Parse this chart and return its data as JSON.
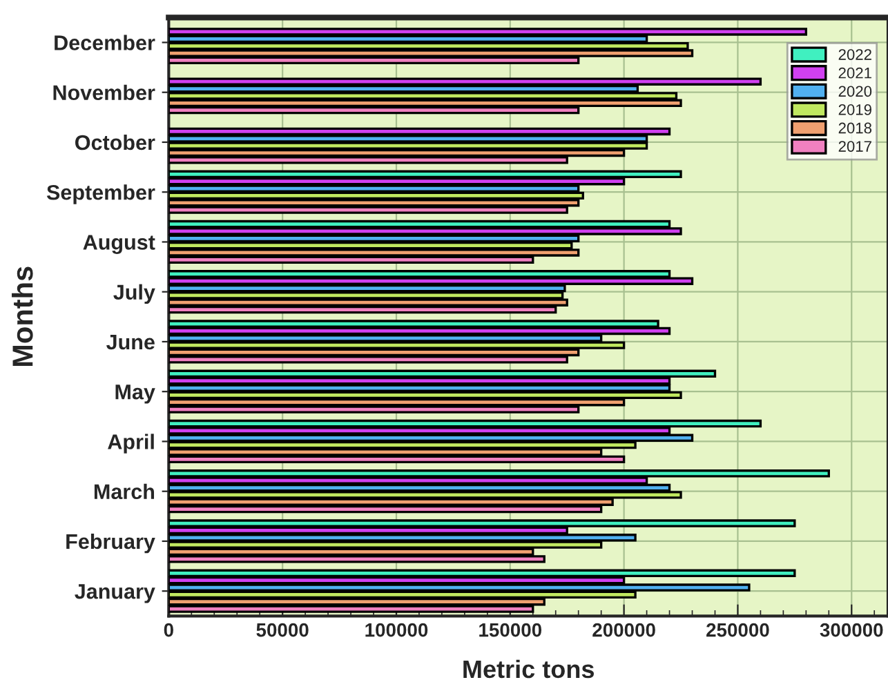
{
  "chart_data": {
    "type": "bar",
    "orientation": "horizontal",
    "xlabel": "Metric tons",
    "ylabel": "Months",
    "categories": [
      "December",
      "November",
      "October",
      "September",
      "August",
      "July",
      "June",
      "May",
      "April",
      "March",
      "February",
      "January"
    ],
    "series": [
      {
        "name": "2022",
        "color": "#40f0c0",
        "values": [
          null,
          null,
          null,
          225000,
          220000,
          220000,
          215000,
          240000,
          260000,
          290000,
          275000,
          275000
        ]
      },
      {
        "name": "2021",
        "color": "#d040f0",
        "values": [
          280000,
          260000,
          220000,
          200000,
          225000,
          230000,
          220000,
          220000,
          220000,
          210000,
          175000,
          200000
        ]
      },
      {
        "name": "2020",
        "color": "#50b0f0",
        "values": [
          210000,
          206000,
          210000,
          180000,
          180000,
          174000,
          190000,
          220000,
          230000,
          220000,
          205000,
          255000
        ]
      },
      {
        "name": "2019",
        "color": "#c0e860",
        "values": [
          228000,
          223000,
          210000,
          182000,
          177000,
          173000,
          200000,
          225000,
          205000,
          225000,
          190000,
          205000
        ]
      },
      {
        "name": "2018",
        "color": "#f0a070",
        "values": [
          230000,
          225000,
          200000,
          180000,
          180000,
          175000,
          180000,
          200000,
          190000,
          195000,
          160000,
          165000
        ]
      },
      {
        "name": "2017",
        "color": "#f080c0",
        "values": [
          180000,
          180000,
          175000,
          175000,
          160000,
          170000,
          175000,
          180000,
          200000,
          190000,
          165000,
          160000
        ]
      }
    ],
    "xlim": [
      0,
      316000
    ],
    "xticks": [
      0,
      50000,
      100000,
      150000,
      200000,
      250000,
      300000
    ],
    "grid": true,
    "legend": "top right"
  }
}
